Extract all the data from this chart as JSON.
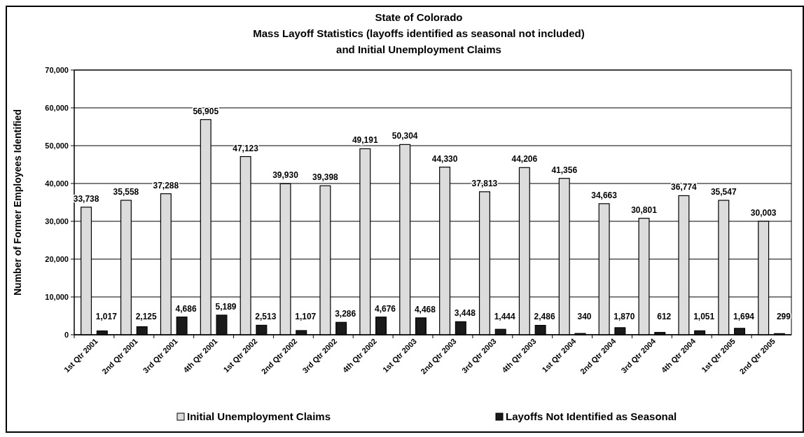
{
  "chart_data": {
    "type": "bar",
    "title": "State of Colorado",
    "subtitle": "Mass Layoff Statistics (layoffs identified as seasonal not included) and Initial Unemployment Claims",
    "ylabel": "Number of Former Employees Identified",
    "categories": [
      "1st Qtr 2001",
      "2nd Qtr 2001",
      "3rd Qtr 2001",
      "4th Qtr 2001",
      "1st Qtr 2002",
      "2nd Qtr 2002",
      "3rd Qtr 2002",
      "4th Qtr 2002",
      "1st Qtr 2003",
      "2nd Qtr 2003",
      "3rd Qtr 2003",
      "4th Qtr 2003",
      "1st Qtr 2004",
      "2nd Qtr 2004",
      "3rd Qtr 2004",
      "4th Qtr 2004",
      "1st Qtr 2005",
      "2nd Qtr 2005"
    ],
    "series": [
      {
        "name": "Initial Unemployment Claims",
        "color": "#dcdcdc",
        "values": [
          33738,
          35558,
          37288,
          56905,
          47123,
          39930,
          39398,
          49191,
          50304,
          44330,
          37813,
          44206,
          41356,
          34663,
          30801,
          36774,
          35547,
          30003
        ],
        "value_labels": [
          "33,738",
          "35,558",
          "37,288",
          "56,905",
          "47,123",
          "39,930",
          "39,398",
          "49,191",
          "50,304",
          "44,330",
          "37,813",
          "44,206",
          "41,356",
          "34,663",
          "30,801",
          "36,774",
          "35,547",
          "30,003"
        ]
      },
      {
        "name": "Layoffs Not Identified as Seasonal",
        "color": "#1a1a1a",
        "values": [
          1017,
          2125,
          4686,
          5189,
          2513,
          1107,
          3286,
          4676,
          4468,
          3448,
          1444,
          2486,
          340,
          1870,
          612,
          1051,
          1694,
          299
        ],
        "value_labels": [
          "1,017",
          "2,125",
          "4,686",
          "5,189",
          "2,513",
          "1,107",
          "3,286",
          "4,676",
          "4,468",
          "3,448",
          "1,444",
          "2,486",
          "340",
          "1,870",
          "612",
          "1,051",
          "1,694",
          "299"
        ]
      }
    ],
    "ylim": [
      0,
      70000
    ],
    "yticks": [
      {
        "value": 0,
        "label": "0"
      },
      {
        "value": 10000,
        "label": "10,000"
      },
      {
        "value": 20000,
        "label": "20,000"
      },
      {
        "value": 30000,
        "label": "30,000"
      },
      {
        "value": 40000,
        "label": "40,000"
      },
      {
        "value": 50000,
        "label": "50,000"
      },
      {
        "value": 60000,
        "label": "60,000"
      },
      {
        "value": 70000,
        "label": "70,000"
      }
    ],
    "grid": "y",
    "legend": "bottom"
  }
}
